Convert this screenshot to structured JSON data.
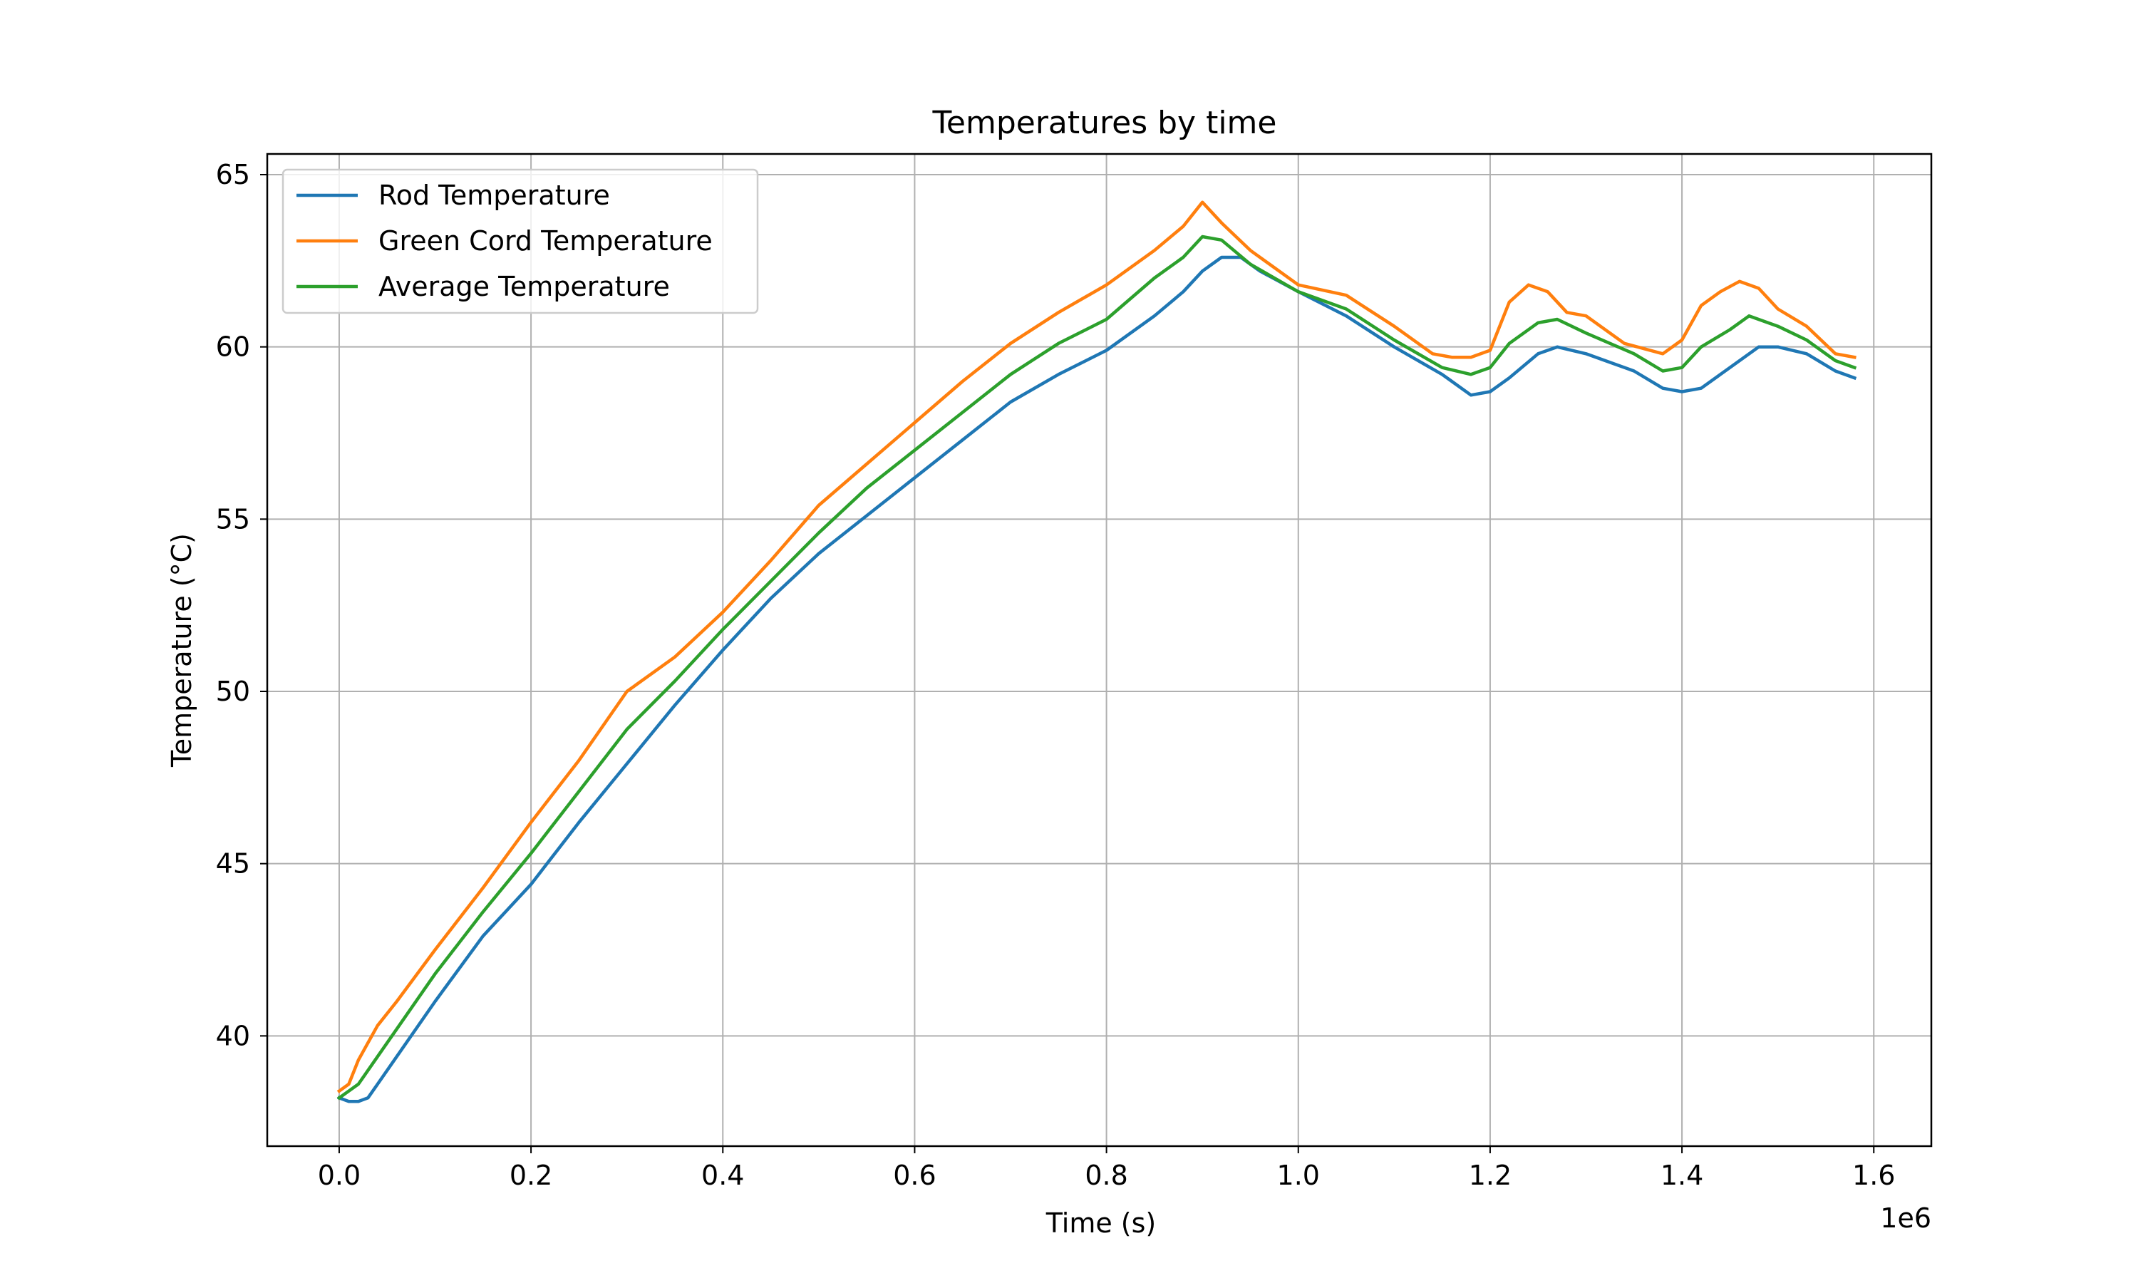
{
  "chart_data": {
    "type": "line",
    "title": "Temperatures by time",
    "xlabel": "Time (s)",
    "ylabel": "Temperature (°C)",
    "x_offset_label": "1e6",
    "xlim": [
      -75000,
      1660000
    ],
    "ylim": [
      36.8,
      65.6
    ],
    "xticks": [
      0,
      200000,
      400000,
      600000,
      800000,
      1000000,
      1200000,
      1400000,
      1600000
    ],
    "xtick_labels": [
      "0.0",
      "0.2",
      "0.4",
      "0.6",
      "0.8",
      "1.0",
      "1.2",
      "1.4",
      "1.6"
    ],
    "yticks": [
      40,
      45,
      50,
      55,
      60,
      65
    ],
    "ytick_labels": [
      "40",
      "45",
      "50",
      "55",
      "60",
      "65"
    ],
    "grid": true,
    "legend_position": "top-left",
    "series": [
      {
        "name": "Rod Temperature",
        "color": "#1f77b4",
        "x": [
          0,
          10000,
          20000,
          30000,
          40000,
          60000,
          100000,
          150000,
          200000,
          250000,
          300000,
          350000,
          400000,
          450000,
          500000,
          550000,
          600000,
          650000,
          700000,
          750000,
          800000,
          850000,
          880000,
          900000,
          920000,
          940000,
          960000,
          1000000,
          1050000,
          1100000,
          1150000,
          1180000,
          1200000,
          1220000,
          1250000,
          1270000,
          1300000,
          1350000,
          1380000,
          1400000,
          1420000,
          1450000,
          1480000,
          1500000,
          1530000,
          1560000,
          1580000
        ],
        "y": [
          38.2,
          38.1,
          38.1,
          38.2,
          38.6,
          39.4,
          41.0,
          42.9,
          44.4,
          46.2,
          47.9,
          49.6,
          51.2,
          52.7,
          54.0,
          55.1,
          56.2,
          57.3,
          58.4,
          59.2,
          59.9,
          60.9,
          61.6,
          62.2,
          62.6,
          62.6,
          62.2,
          61.6,
          60.9,
          60.0,
          59.2,
          58.6,
          58.7,
          59.1,
          59.8,
          60.0,
          59.8,
          59.3,
          58.8,
          58.7,
          58.8,
          59.4,
          60.0,
          60.0,
          59.8,
          59.3,
          59.1
        ]
      },
      {
        "name": "Green Cord Temperature",
        "color": "#ff7f0e",
        "x": [
          0,
          10000,
          20000,
          40000,
          60000,
          100000,
          150000,
          200000,
          250000,
          300000,
          350000,
          400000,
          450000,
          500000,
          550000,
          600000,
          650000,
          700000,
          750000,
          800000,
          850000,
          880000,
          900000,
          920000,
          950000,
          1000000,
          1050000,
          1100000,
          1140000,
          1160000,
          1180000,
          1200000,
          1220000,
          1240000,
          1260000,
          1280000,
          1300000,
          1340000,
          1380000,
          1400000,
          1420000,
          1440000,
          1460000,
          1480000,
          1500000,
          1530000,
          1560000,
          1580000
        ],
        "y": [
          38.4,
          38.6,
          39.3,
          40.3,
          41.0,
          42.5,
          44.3,
          46.2,
          48.0,
          50.0,
          51.0,
          52.3,
          53.8,
          55.4,
          56.6,
          57.8,
          59.0,
          60.1,
          61.0,
          61.8,
          62.8,
          63.5,
          64.2,
          63.6,
          62.8,
          61.8,
          61.5,
          60.6,
          59.8,
          59.7,
          59.7,
          59.9,
          61.3,
          61.8,
          61.6,
          61.0,
          60.9,
          60.1,
          59.8,
          60.2,
          61.2,
          61.6,
          61.9,
          61.7,
          61.1,
          60.6,
          59.8,
          59.7
        ]
      },
      {
        "name": "Average Temperature",
        "color": "#2ca02c",
        "x": [
          0,
          10000,
          20000,
          40000,
          60000,
          100000,
          150000,
          200000,
          250000,
          300000,
          350000,
          400000,
          450000,
          500000,
          550000,
          600000,
          650000,
          700000,
          750000,
          800000,
          850000,
          880000,
          900000,
          920000,
          950000,
          1000000,
          1050000,
          1100000,
          1150000,
          1180000,
          1200000,
          1220000,
          1250000,
          1270000,
          1300000,
          1350000,
          1380000,
          1400000,
          1420000,
          1450000,
          1470000,
          1500000,
          1530000,
          1560000,
          1580000
        ],
        "y": [
          38.2,
          38.4,
          38.6,
          39.4,
          40.2,
          41.8,
          43.6,
          45.3,
          47.1,
          48.9,
          50.3,
          51.8,
          53.2,
          54.6,
          55.9,
          57.0,
          58.1,
          59.2,
          60.1,
          60.8,
          62.0,
          62.6,
          63.2,
          63.1,
          62.4,
          61.6,
          61.1,
          60.2,
          59.4,
          59.2,
          59.4,
          60.1,
          60.7,
          60.8,
          60.4,
          59.8,
          59.3,
          59.4,
          60.0,
          60.5,
          60.9,
          60.6,
          60.2,
          59.6,
          59.4
        ]
      }
    ]
  }
}
